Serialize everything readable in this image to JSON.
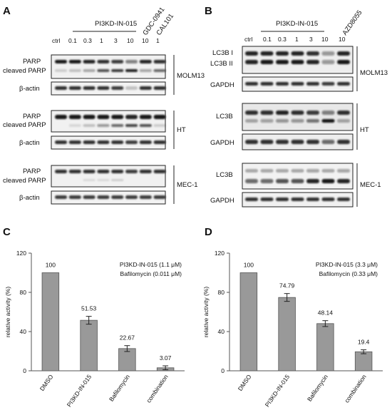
{
  "panels": {
    "a": "A",
    "b": "B",
    "c": "C",
    "d": "D"
  },
  "blot_a": {
    "treatment": "PI3KD-IN-015",
    "lanes": [
      "ctrl",
      "0.1",
      "0.3",
      "1",
      "3",
      "10",
      "10",
      "1"
    ],
    "ref_drugs": [
      "GDC-0941",
      "CAL101"
    ],
    "groups": [
      {
        "cell_line": "MOLM13",
        "rows": [
          "PARP",
          "cleaved PARP"
        ],
        "loading": "β-actin"
      },
      {
        "cell_line": "HT",
        "rows": [
          "PARP",
          "cleaved PARP"
        ],
        "loading": "β-actin"
      },
      {
        "cell_line": "MEC-1",
        "rows": [
          "PARP",
          "cleaved PARP"
        ],
        "loading": "β-actin"
      }
    ]
  },
  "blot_b": {
    "treatment": "PI3KD-IN-015",
    "lanes": [
      "ctrl",
      "0.1",
      "0.3",
      "1",
      "3",
      "10",
      "10"
    ],
    "ref_drugs": [
      "AZD8055"
    ],
    "groups": [
      {
        "cell_line": "MOLM13",
        "rows": [
          "LC3B I",
          "LC3B II"
        ],
        "loading": "GAPDH"
      },
      {
        "cell_line": "HT",
        "rows": [
          "LC3B"
        ],
        "loading": "GAPDH"
      },
      {
        "cell_line": "MEC-1",
        "rows": [
          "LC3B"
        ],
        "loading": "GAPDH"
      }
    ]
  },
  "chart_data": [
    {
      "type": "bar",
      "panel": "C",
      "categories": [
        "DMSO",
        "PI3KD-IN-015",
        "Bafilomycin",
        "combination"
      ],
      "values": [
        100,
        51.53,
        22.67,
        3.07
      ],
      "value_labels": [
        "100",
        "51.53",
        "22.67",
        "3.07"
      ],
      "errors": [
        0,
        4,
        3,
        2
      ],
      "ylabel": "relative activity (%)",
      "ylim": [
        0,
        120
      ],
      "yticks": [
        0,
        40,
        80,
        120
      ],
      "annotations": [
        "PI3KD-IN-015 (1.1 μM)",
        "Bafilomycin (0.011 μM)"
      ],
      "color": "#999999"
    },
    {
      "type": "bar",
      "panel": "D",
      "categories": [
        "DMSO",
        "PI3KD-IN-015",
        "Bafilomycin",
        "combination"
      ],
      "values": [
        100,
        74.79,
        48.14,
        19.4
      ],
      "value_labels": [
        "100",
        "74.79",
        "48.14",
        "19.4"
      ],
      "errors": [
        0,
        4,
        3,
        2
      ],
      "ylabel": "relative activity (%)",
      "ylim": [
        0,
        120
      ],
      "yticks": [
        0,
        40,
        80,
        120
      ],
      "annotations": [
        "PI3KD-IN-015 (3.3 μM)",
        "Bafilomycin (0.33 μM)"
      ],
      "color": "#999999"
    }
  ]
}
